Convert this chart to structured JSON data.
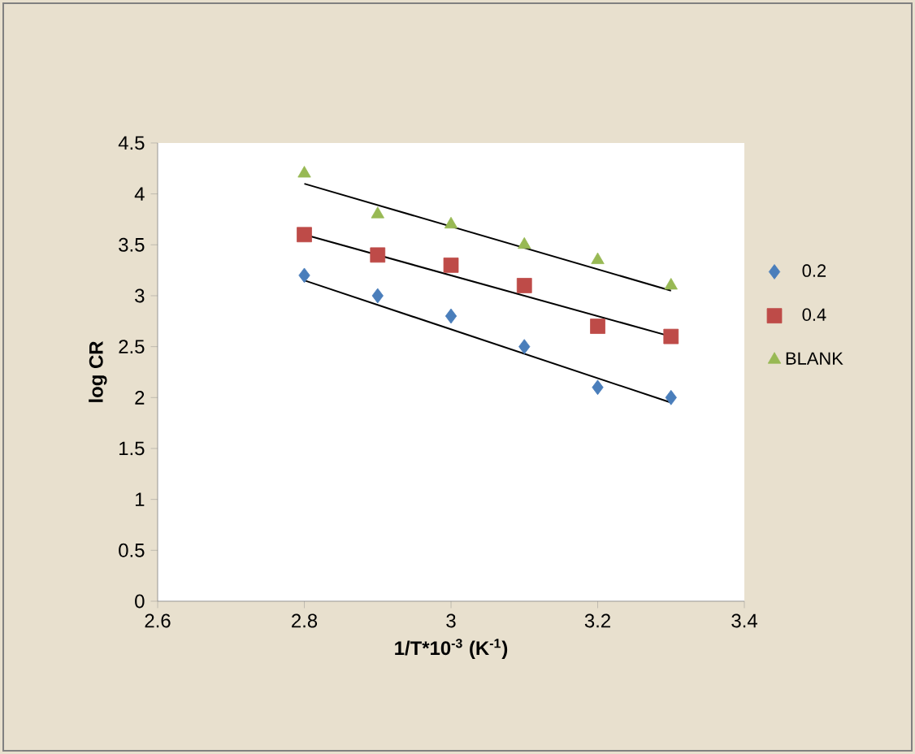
{
  "chart_data": {
    "type": "scatter",
    "xlabel": "1/T*10$^{-3}$ (K$^{-1}$)",
    "ylabel": "log CR",
    "xlim": [
      2.6,
      3.4
    ],
    "xticks": [
      2.6,
      2.8,
      3,
      3.2,
      3.4
    ],
    "ylim": [
      0,
      4.5
    ],
    "yticks": [
      0,
      0.5,
      1,
      1.5,
      2,
      2.5,
      3,
      3.5,
      4,
      4.5
    ],
    "grid": false,
    "legend": "right",
    "series": [
      {
        "name": "0.2",
        "color": "#4a7ebb",
        "marker": "diamond",
        "x": [
          2.8,
          2.9,
          3.0,
          3.1,
          3.2,
          3.3
        ],
        "values": [
          3.2,
          3.0,
          2.8,
          2.5,
          2.1,
          2.0
        ]
      },
      {
        "name": "0.4",
        "color": "#be4b48",
        "marker": "square",
        "x": [
          2.8,
          2.9,
          3.0,
          3.1,
          3.2,
          3.3
        ],
        "values": [
          3.6,
          3.4,
          3.3,
          3.1,
          2.7,
          2.6
        ]
      },
      {
        "name": "BLANK",
        "color": "#98b954",
        "marker": "triangle",
        "x": [
          2.8,
          2.9,
          3.0,
          3.1,
          3.2,
          3.3
        ],
        "values": [
          4.2,
          3.8,
          3.7,
          3.5,
          3.35,
          3.1
        ]
      },
      {
        "type": "line",
        "color": "#000000",
        "marker": "none",
        "line_style": "solid",
        "x": [
          2.8,
          3.3
        ],
        "values": [
          3.15,
          1.95
        ]
      },
      {
        "type": "line",
        "color": "#000000",
        "marker": "none",
        "line_style": "solid",
        "x": [
          2.8,
          3.3
        ],
        "values": [
          3.6,
          2.6
        ]
      },
      {
        "type": "line",
        "color": "#000000",
        "marker": "none",
        "line_style": "solid",
        "x": [
          2.8,
          3.3
        ],
        "values": [
          4.1,
          3.05
        ]
      }
    ]
  }
}
